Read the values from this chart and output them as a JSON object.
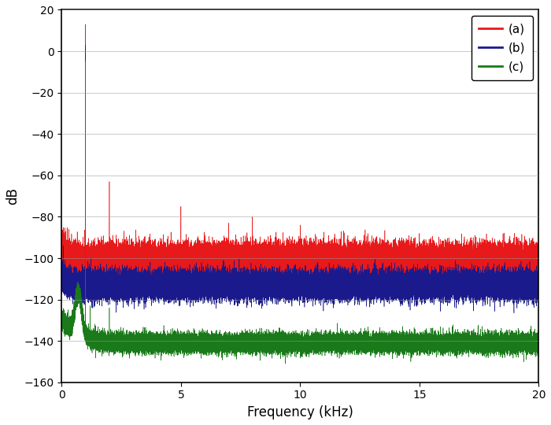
{
  "title": "",
  "xlabel": "Frequency (kHz)",
  "ylabel": "dB",
  "xlim": [
    0,
    20
  ],
  "ylim": [
    -160,
    20
  ],
  "yticks": [
    20,
    0,
    -20,
    -40,
    -60,
    -80,
    -100,
    -120,
    -140,
    -160
  ],
  "xticks": [
    0,
    5,
    10,
    15,
    20
  ],
  "colors": {
    "a": "#e8191a",
    "b": "#1a1a8c",
    "c": "#1a7a1a"
  },
  "legend_labels": [
    "(a)",
    "(b)",
    "(c)"
  ],
  "noise_floor_a": -101,
  "noise_floor_b": -113,
  "noise_floor_c": -141,
  "fundamental_db_a": 13,
  "fundamental_db_b": 3,
  "fundamental_db_c": -5,
  "background_color": "#ffffff",
  "grid_color": "#aaaaaa",
  "fig_width": 7.0,
  "fig_height": 5.4,
  "dpi": 100,
  "harmonics_a": [
    [
      2.0,
      -63
    ],
    [
      3.0,
      -92
    ],
    [
      4.0,
      -95
    ],
    [
      5.0,
      -75
    ],
    [
      6.0,
      -89
    ],
    [
      7.0,
      -83
    ],
    [
      8.0,
      -80
    ],
    [
      9.0,
      -90
    ],
    [
      10.0,
      -84
    ],
    [
      11.0,
      -91
    ],
    [
      12.0,
      -89
    ],
    [
      13.0,
      -93
    ],
    [
      14.0,
      -90
    ],
    [
      15.0,
      -88
    ],
    [
      16.0,
      -93
    ],
    [
      17.0,
      -91
    ],
    [
      18.0,
      -92
    ],
    [
      19.0,
      -95
    ],
    [
      20.0,
      -94
    ]
  ],
  "harmonics_c": [
    [
      1.0,
      -123
    ],
    [
      2.0,
      -124
    ],
    [
      3.5,
      -135
    ],
    [
      5.9,
      -134
    ]
  ]
}
